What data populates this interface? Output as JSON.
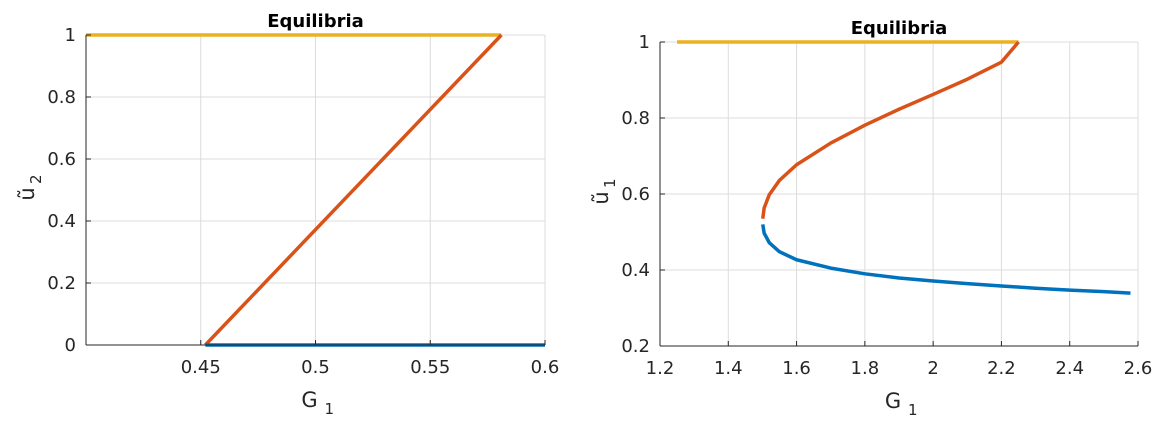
{
  "chart_data": [
    {
      "type": "line",
      "title": "Equilibria",
      "xlabel": "G",
      "xlabel_subscript": "1",
      "ylabel": "ũ",
      "ylabel_subscript": "2",
      "xlim": [
        0.4,
        0.6
      ],
      "ylim": [
        0,
        1
      ],
      "xticks": [
        0.45,
        0.5,
        0.55,
        0.6
      ],
      "xtick_labels": [
        "0.45",
        "0.5",
        "0.55",
        "0.6"
      ],
      "yticks": [
        0,
        0.2,
        0.4,
        0.6,
        0.8,
        1
      ],
      "ytick_labels": [
        "0",
        "0.2",
        "0.4",
        "0.6",
        "0.8",
        "1"
      ],
      "grid": true,
      "series": [
        {
          "color": "#EDB120",
          "x": [
            0.4,
            0.581
          ],
          "y": [
            1,
            1
          ]
        },
        {
          "color": "#D95319",
          "x": [
            0.452,
            0.581
          ],
          "y": [
            0,
            1
          ]
        },
        {
          "color": "#0072BD",
          "x": [
            0.452,
            0.6
          ],
          "y": [
            0,
            0
          ]
        }
      ]
    },
    {
      "type": "line",
      "title": "Equilibria",
      "xlabel": "G",
      "xlabel_subscript": "1",
      "ylabel": "ũ",
      "ylabel_subscript": "1",
      "xlim": [
        1.2,
        2.6
      ],
      "ylim": [
        0.2,
        1
      ],
      "xticks": [
        1.2,
        1.4,
        1.6,
        1.8,
        2,
        2.2,
        2.4,
        2.6
      ],
      "xtick_labels": [
        "1.2",
        "1.4",
        "1.6",
        "1.8",
        "2",
        "2.2",
        "2.4",
        "2.6"
      ],
      "yticks": [
        0.2,
        0.4,
        0.6,
        0.8,
        1
      ],
      "ytick_labels": [
        "0.2",
        "0.4",
        "0.6",
        "0.8",
        "1"
      ],
      "grid": true,
      "series": [
        {
          "color": "#EDB120",
          "x": [
            1.25,
            2.25
          ],
          "y": [
            1,
            1
          ]
        },
        {
          "color": "#D95319",
          "x": [
            1.501,
            1.505,
            1.52,
            1.55,
            1.6,
            1.7,
            1.8,
            1.9,
            2.0,
            2.1,
            2.2,
            2.25
          ],
          "y": [
            0.535,
            0.563,
            0.598,
            0.636,
            0.677,
            0.734,
            0.781,
            0.823,
            0.862,
            0.902,
            0.947,
            1.0
          ]
        },
        {
          "color": "#0072BD",
          "x": [
            1.501,
            1.505,
            1.52,
            1.55,
            1.6,
            1.7,
            1.8,
            1.9,
            2.0,
            2.1,
            2.2,
            2.3,
            2.4,
            2.5,
            2.578
          ],
          "y": [
            0.52,
            0.497,
            0.472,
            0.448,
            0.427,
            0.405,
            0.39,
            0.379,
            0.371,
            0.364,
            0.358,
            0.352,
            0.347,
            0.343,
            0.339
          ]
        }
      ]
    }
  ]
}
